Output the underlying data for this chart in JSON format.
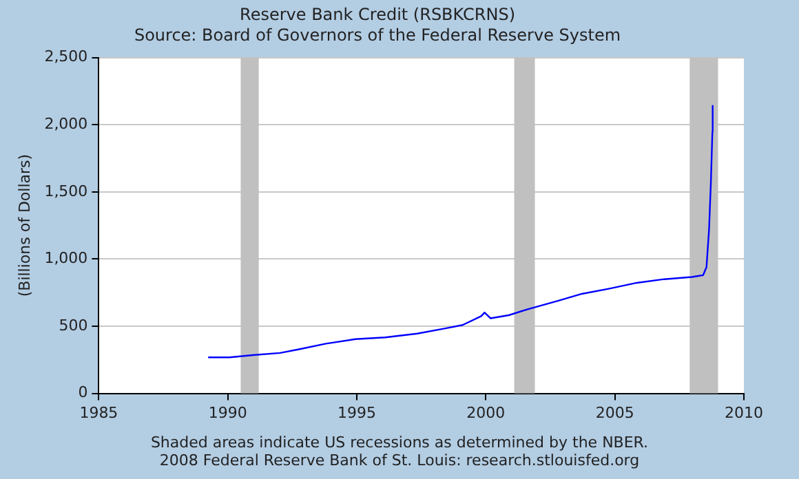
{
  "chart_data": {
    "type": "line",
    "title": "Reserve Bank Credit (RSBKCRNS)",
    "subtitle": "Source: Board of Governors of the Federal Reserve System",
    "ylabel": "(Billions of Dollars)",
    "x": [
      1989.24,
      1990.07,
      1990.96,
      1992.02,
      1992.73,
      1993.8,
      1994.95,
      1996.1,
      1997.34,
      1998.4,
      1999.1,
      1999.82,
      1999.95,
      2000.18,
      2000.89,
      2001.6,
      2002.84,
      2003.72,
      2004.79,
      2005.85,
      2006.91,
      2007.98,
      2008.42,
      2008.55,
      2008.65,
      2008.72,
      2008.78,
      2008.79
    ],
    "series": [
      {
        "color": "#0000ff",
        "values": [
          268,
          268,
          285,
          301,
          327,
          370,
          404,
          417,
          445,
          483,
          509,
          575,
          602,
          559,
          582,
          625,
          691,
          741,
          780,
          823,
          850,
          866,
          880,
          939,
          1220,
          1567,
          1948,
          2146
        ]
      }
    ],
    "xlim": [
      1985,
      2010
    ],
    "xticks": [
      1985,
      1990,
      1995,
      2000,
      2005,
      2010
    ],
    "ylim": [
      0,
      2500
    ],
    "yticks": [
      {
        "value": 0,
        "label": "0"
      },
      {
        "value": 500,
        "label": "500"
      },
      {
        "value": 1000,
        "label": "1,000"
      },
      {
        "value": 1500,
        "label": "1,500"
      },
      {
        "value": 2000,
        "label": "2,000"
      },
      {
        "value": 2500,
        "label": "2,500"
      }
    ],
    "grid": "y",
    "legend": false,
    "marker": "none",
    "line_style": "solid",
    "bands": [
      {
        "axis": "x",
        "from": 1990.5,
        "to": 1991.2,
        "color": "#c0c0c0"
      },
      {
        "axis": "x",
        "from": 2001.1,
        "to": 2001.9,
        "color": "#c0c0c0"
      },
      {
        "axis": "x",
        "from": 2007.9,
        "to": 2009.0,
        "color": "#c0c0c0"
      }
    ],
    "annotations": [
      "Shaded areas indicate US recessions as determined by the NBER.",
      "2008 Federal Reserve Bank of St. Louis: research.stlouisfed.org"
    ]
  }
}
